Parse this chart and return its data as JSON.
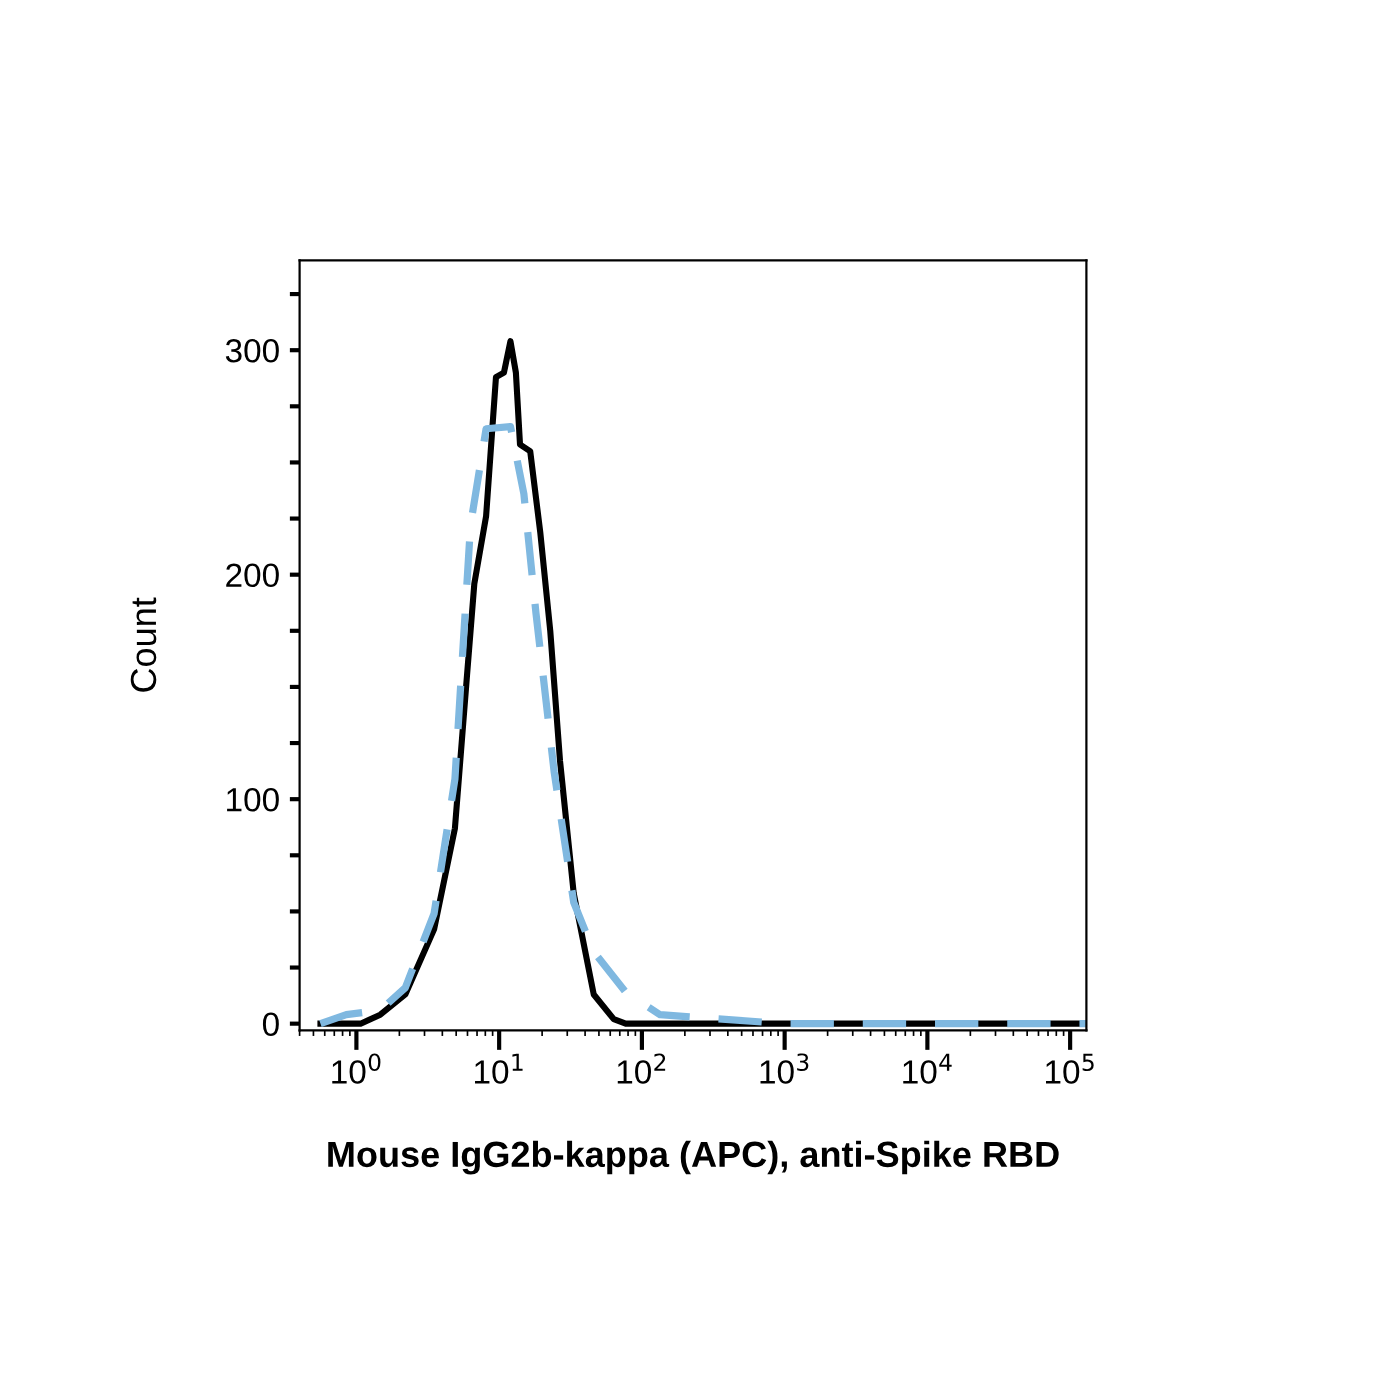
{
  "chart_data": {
    "type": "line",
    "xlabel": "Mouse IgG2b-kappa (APC), anti-Spike RBD",
    "ylabel": "Count",
    "log": "x",
    "grid": false,
    "marker": "none",
    "xlim": [
      0.4,
      130000
    ],
    "ylim": [
      -3,
      340
    ],
    "xticks": [
      {
        "value": 1,
        "label": "10$^{0}$"
      },
      {
        "value": 10,
        "label": "10$^{1}$"
      },
      {
        "value": 100,
        "label": "10$^{2}$"
      },
      {
        "value": 1000,
        "label": "10$^{3}$"
      },
      {
        "value": 10000,
        "label": "10$^{4}$"
      },
      {
        "value": 100000,
        "label": "10$^{5}$"
      }
    ],
    "yticks": [
      0,
      {
        "value": 25,
        "label": null
      },
      {
        "value": 50,
        "label": null
      },
      {
        "value": 75,
        "label": null
      },
      100,
      {
        "value": 125,
        "label": null
      },
      {
        "value": 150,
        "label": null
      },
      {
        "value": 175,
        "label": null
      },
      200,
      {
        "value": 225,
        "label": null
      },
      {
        "value": 250,
        "label": null
      },
      {
        "value": 275,
        "label": null
      },
      300,
      {
        "value": 325,
        "label": null
      }
    ],
    "series": [
      {
        "color": "#000000",
        "line_style": "solid",
        "x": [
          0.56,
          1.07,
          1.47,
          2.2,
          3.5,
          4.9,
          5.9,
          6.7,
          8.1,
          9.5,
          10.8,
          12,
          13.1,
          14,
          16.5,
          19.4,
          22.8,
          26.7,
          33.3,
          46,
          63.5,
          77,
          1000,
          130000
        ],
        "values": [
          0,
          0,
          4,
          13,
          42,
          87,
          152,
          196,
          226,
          288,
          290,
          304,
          290,
          258,
          255,
          219,
          175,
          117,
          58,
          13,
          2,
          0,
          0,
          0
        ]
      },
      {
        "color": "#7fb8e0",
        "line_style": "dashed",
        "x": [
          0.56,
          0.85,
          1.47,
          2.2,
          3.5,
          4.9,
          6.3,
          8.1,
          12,
          14.9,
          18.1,
          24.3,
          33.3,
          46,
          77,
          134,
          1000,
          130000
        ],
        "values": [
          0,
          4,
          6,
          16,
          49,
          109,
          222,
          265,
          266,
          236,
          183,
          112,
          54,
          32,
          14,
          4,
          0,
          0
        ]
      }
    ]
  }
}
